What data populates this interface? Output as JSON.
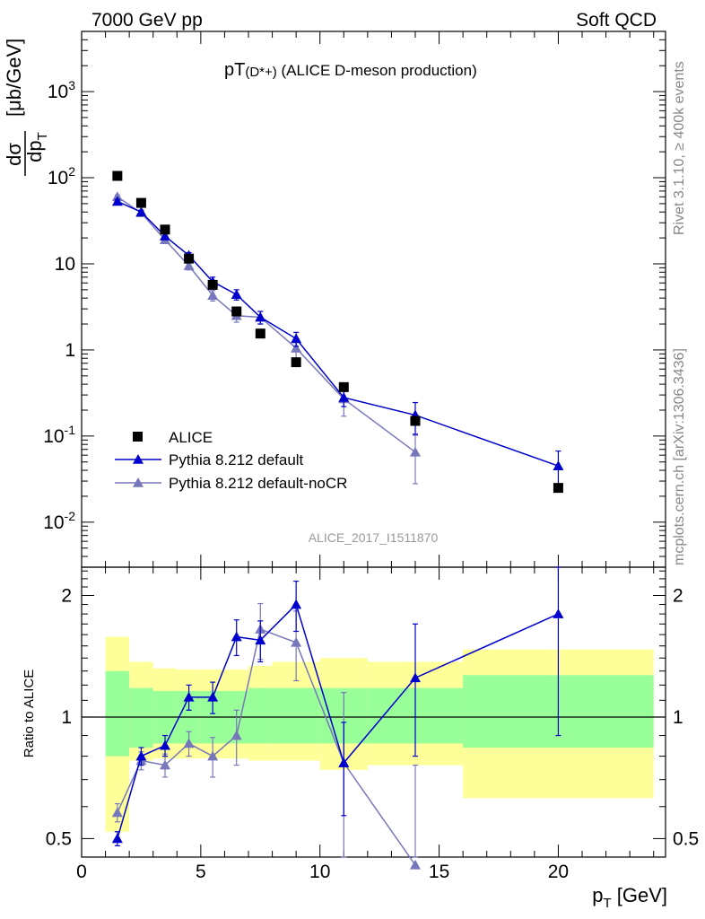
{
  "header": {
    "left": "7000 GeV pp",
    "right": "Soft QCD"
  },
  "side_labels": {
    "rivet": "Rivet 3.1.10, ≥ 400k events",
    "mcplots": "mcplots.cern.ch [arXiv:1306.3436]"
  },
  "analysis_id": "ALICE_2017_I1511870",
  "chart_data": [
    {
      "type": "scatter",
      "panel": "main",
      "title": "pT(D*+) (ALICE D-meson production)",
      "title_main": "pT",
      "title_particle": "(D*+)",
      "title_rest": " (ALICE D-meson production)",
      "ylabel": "dσ/dp_T [μb/GeV]",
      "ylabel_unit": "[μb/GeV]",
      "xlabel": "p_T [GeV]",
      "xlim": [
        0,
        24.5
      ],
      "ylim": [
        0.003,
        5000
      ],
      "yscale": "log",
      "y_ticks": [
        {
          "v": 0.01,
          "base": "10",
          "exp": "-2"
        },
        {
          "v": 0.1,
          "base": "10",
          "exp": "-1"
        },
        {
          "v": 1,
          "base": "1",
          "exp": ""
        },
        {
          "v": 10,
          "base": "10",
          "exp": ""
        },
        {
          "v": 100,
          "base": "10",
          "exp": "2"
        },
        {
          "v": 1000,
          "base": "10",
          "exp": "3"
        }
      ],
      "legend_position": "bottom-left",
      "series": [
        {
          "name": "ALICE",
          "color": "#000000",
          "marker": "square",
          "x": [
            1.5,
            2.5,
            3.5,
            4.5,
            5.5,
            6.5,
            7.5,
            9,
            11,
            14,
            20
          ],
          "y": [
            105,
            51,
            25,
            11.5,
            5.7,
            2.8,
            1.55,
            0.72,
            0.37,
            0.15,
            0.025
          ]
        },
        {
          "name": "Pythia 8.212 default",
          "color": "#0000cc",
          "marker": "triangle",
          "x": [
            1.5,
            2.5,
            3.5,
            4.5,
            5.5,
            6.5,
            7.5,
            9,
            11,
            14,
            20
          ],
          "y": [
            53,
            40,
            21,
            12.5,
            6.2,
            4.4,
            2.4,
            1.35,
            0.28,
            0.175,
            0.045
          ],
          "err": [
            3,
            2,
            1.5,
            1,
            0.8,
            0.6,
            0.4,
            0.25,
            0.06,
            0.07,
            0.022
          ]
        },
        {
          "name": "Pythia 8.212 default-noCR",
          "color": "#7777bb",
          "marker": "triangle",
          "x": [
            1.5,
            2.5,
            3.5,
            4.5,
            5.5,
            6.5,
            7.5,
            9,
            11,
            14,
            20
          ],
          "y": [
            60,
            39,
            19,
            9.5,
            4.3,
            2.5,
            2.4,
            1.05,
            0.27,
            0.065,
            null
          ],
          "err": [
            3,
            2,
            1.5,
            1,
            0.6,
            0.4,
            0.4,
            0.25,
            0.1,
            0.037,
            null
          ]
        }
      ]
    },
    {
      "type": "scatter",
      "panel": "ratio",
      "ylabel": "Ratio to ALICE",
      "xlabel": "p_T [GeV]",
      "xlim": [
        0,
        24.5
      ],
      "ylim": [
        0.45,
        2.35
      ],
      "yscale": "log",
      "y_ticks": [
        0.5,
        1,
        2
      ],
      "x_ticks": [
        0,
        5,
        10,
        15,
        20
      ],
      "bands": {
        "edges": [
          1,
          2,
          3,
          4,
          5,
          6,
          7,
          8,
          10,
          12,
          16,
          24
        ],
        "green_lo": [
          0.8,
          0.84,
          0.86,
          0.86,
          0.86,
          0.86,
          0.86,
          0.86,
          0.86,
          0.86,
          0.84
        ],
        "green_hi": [
          1.3,
          1.18,
          1.16,
          1.16,
          1.16,
          1.16,
          1.18,
          1.18,
          1.18,
          1.18,
          1.27
        ],
        "yellow_lo": [
          0.52,
          0.78,
          0.79,
          0.79,
          0.79,
          0.79,
          0.78,
          0.78,
          0.74,
          0.76,
          0.63
        ],
        "yellow_hi": [
          1.58,
          1.37,
          1.32,
          1.31,
          1.31,
          1.31,
          1.34,
          1.37,
          1.4,
          1.37,
          1.47
        ],
        "green_color": "#99ff99",
        "yellow_color": "#ffff99"
      },
      "series": [
        {
          "name": "Pythia 8.212 default",
          "color": "#0000cc",
          "x": [
            1.5,
            2.5,
            3.5,
            4.5,
            5.5,
            6.5,
            7.5,
            9,
            11,
            14,
            20
          ],
          "y": [
            0.5,
            0.8,
            0.85,
            1.12,
            1.12,
            1.58,
            1.55,
            1.9,
            0.77,
            1.25,
            1.8
          ],
          "err": [
            0.02,
            0.04,
            0.05,
            0.08,
            0.1,
            0.16,
            0.18,
            0.27,
            0.2,
            0.45,
            0.9
          ]
        },
        {
          "name": "Pythia 8.212 default-noCR",
          "color": "#7777bb",
          "x": [
            1.5,
            2.5,
            3.5,
            4.5,
            5.5,
            6.5,
            7.5,
            9,
            11,
            14
          ],
          "y": [
            0.58,
            0.78,
            0.76,
            0.86,
            0.8,
            0.9,
            1.65,
            1.53,
            0.77,
            0.43
          ],
          "err": [
            0.03,
            0.04,
            0.05,
            0.06,
            0.09,
            0.14,
            0.26,
            0.3,
            0.38,
            0.33
          ]
        }
      ]
    }
  ]
}
